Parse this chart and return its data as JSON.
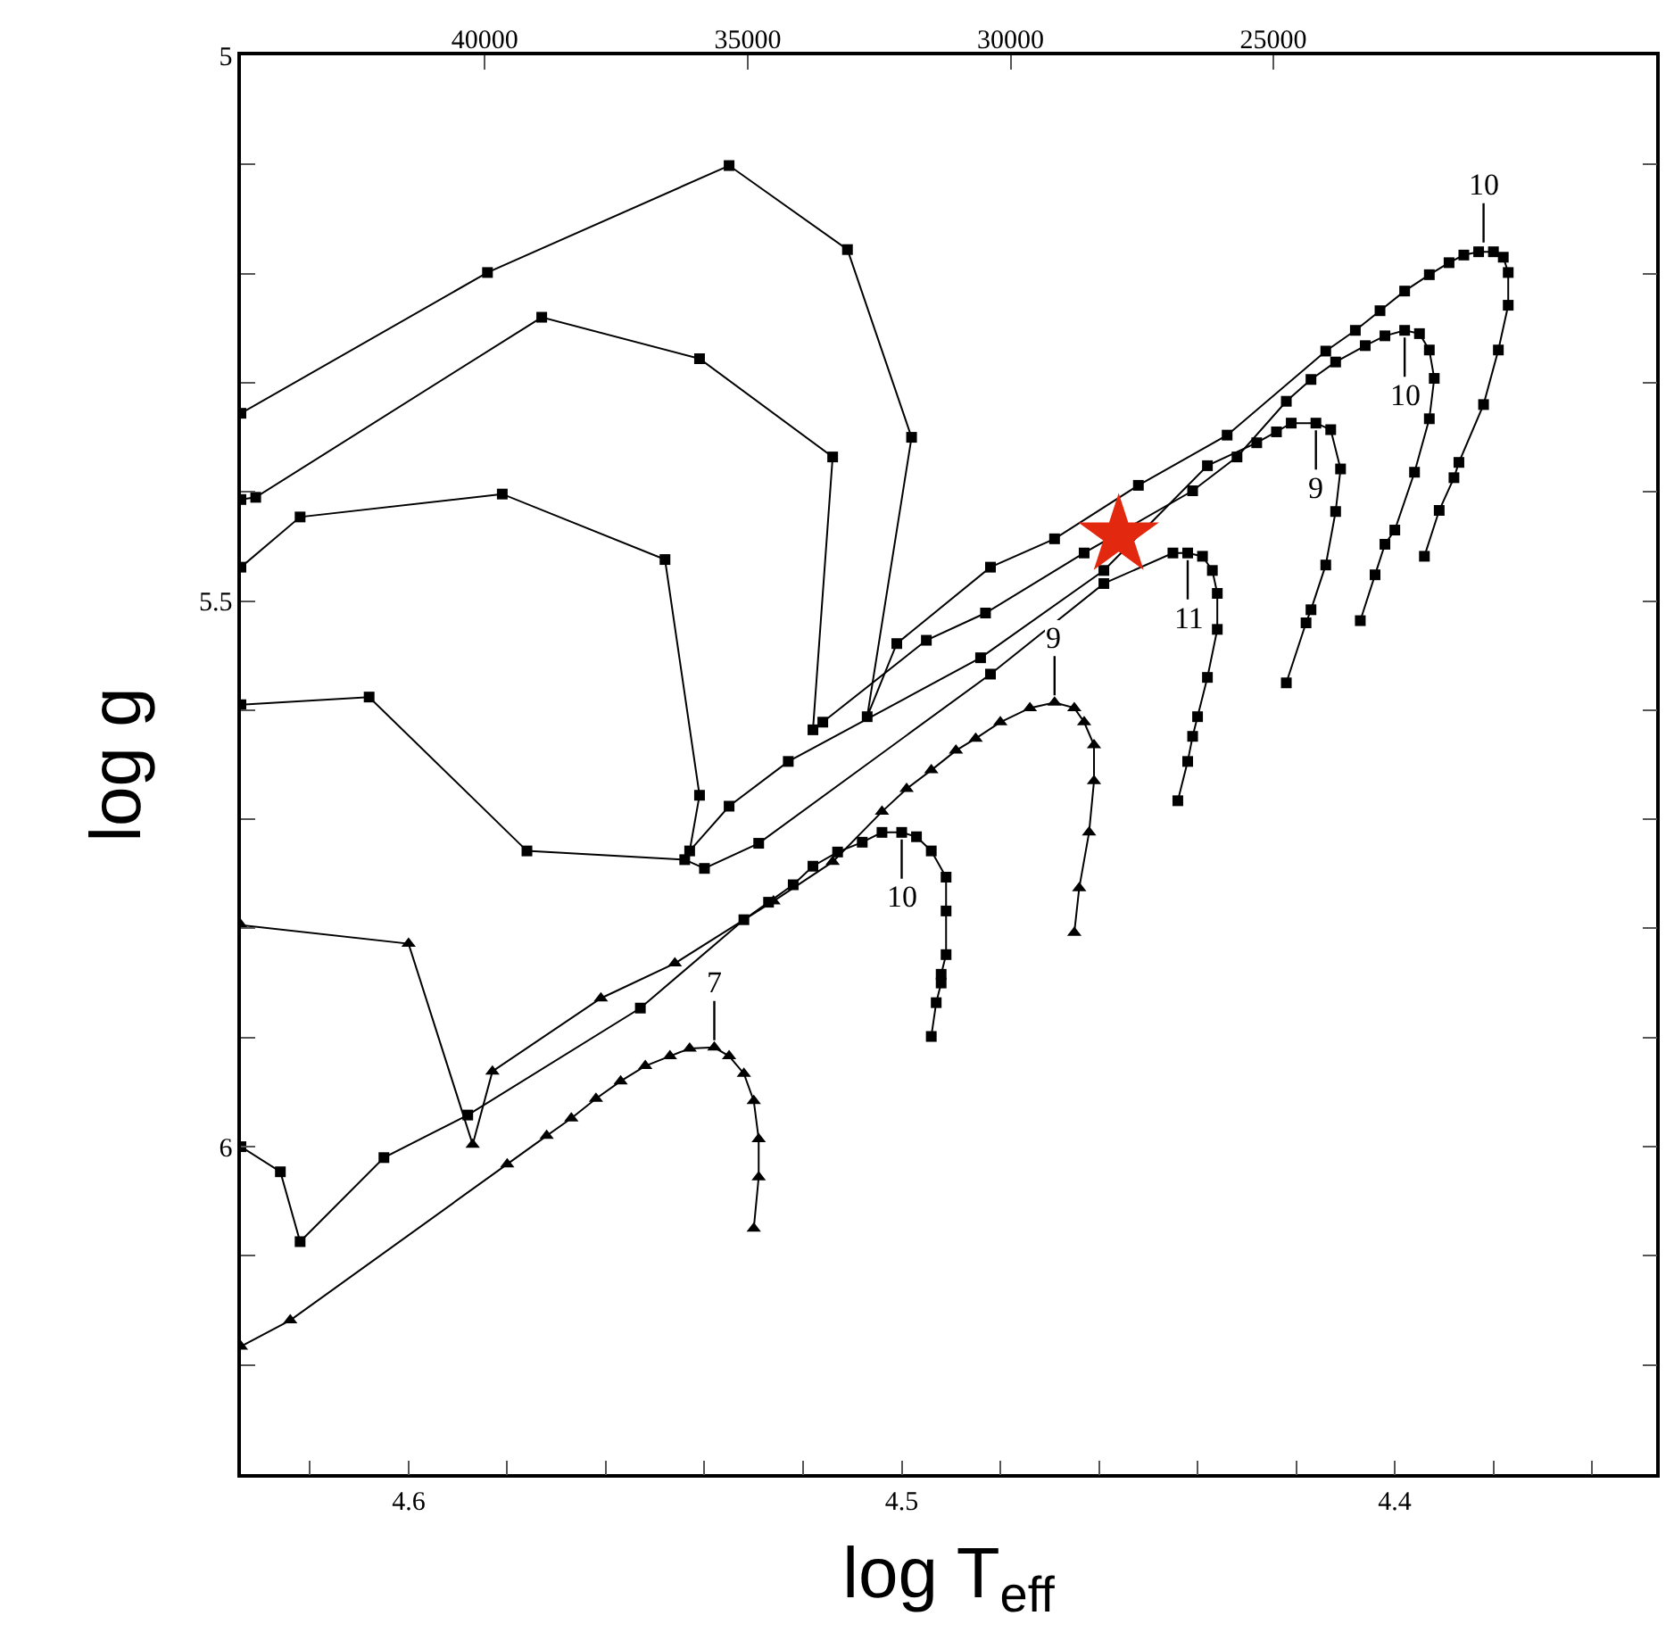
{
  "chart_data": {
    "type": "line",
    "xlabel": "log T$_{eff}$",
    "ylabel": "log g",
    "xlim": [
      4.634,
      4.347
    ],
    "ylim": [
      6.3,
      5.0
    ],
    "xticks": [
      {
        "value": 4.62,
        "label": null
      },
      4.6,
      {
        "value": 4.58,
        "label": null
      },
      {
        "value": 4.56,
        "label": null
      },
      {
        "value": 4.54,
        "label": null
      },
      {
        "value": 4.52,
        "label": null
      },
      4.5,
      {
        "value": 4.48,
        "label": null
      },
      {
        "value": 4.46,
        "label": null
      },
      {
        "value": 4.44,
        "label": null
      },
      {
        "value": 4.42,
        "label": null
      },
      4.4,
      {
        "value": 4.38,
        "label": null
      },
      {
        "value": 4.36,
        "label": null
      }
    ],
    "yticks": [
      5,
      {
        "value": 5.1,
        "label": null
      },
      {
        "value": 5.2,
        "label": null
      },
      {
        "value": 5.3,
        "label": null
      },
      {
        "value": 5.4,
        "label": null
      },
      5.5,
      {
        "value": 5.6,
        "label": null
      },
      {
        "value": 5.7,
        "label": null
      },
      {
        "value": 5.8,
        "label": null
      },
      {
        "value": 5.9,
        "label": null
      },
      6,
      {
        "value": 6.1,
        "label": null
      },
      {
        "value": 6.2,
        "label": null
      }
    ],
    "x2lim": [
      44640,
      17720
    ],
    "x2ticks": [
      40000,
      35000,
      30000,
      25000
    ],
    "line_style": "solid",
    "series": [
      {
        "color": "#000000",
        "marker": "square",
        "x": [
          4.634,
          4.584,
          4.535,
          4.511,
          4.498,
          4.507,
          4.501,
          4.482,
          4.469,
          4.452,
          4.434,
          4.414,
          4.408,
          4.403,
          4.398,
          4.393,
          4.389,
          4.386,
          4.383,
          4.38,
          4.378,
          4.377,
          4.377,
          4.379,
          4.382,
          4.387,
          4.388,
          4.391,
          4.394
        ],
        "values": [
          5.328,
          5.199,
          5.101,
          5.178,
          5.35,
          5.606,
          5.539,
          5.469,
          5.443,
          5.394,
          5.348,
          5.271,
          5.252,
          5.234,
          5.216,
          5.201,
          5.19,
          5.183,
          5.18,
          5.18,
          5.185,
          5.199,
          5.229,
          5.27,
          5.32,
          5.373,
          5.387,
          5.417,
          5.459
        ]
      },
      {
        "color": "#000000",
        "marker": "square",
        "x": [
          4.634,
          4.631,
          4.573,
          4.541,
          4.514,
          4.518,
          4.516,
          4.495,
          4.483,
          4.463,
          4.441,
          4.432,
          4.422,
          4.417,
          4.412,
          4.406,
          4.402,
          4.398,
          4.395,
          4.393,
          4.392,
          4.393,
          4.396,
          4.4,
          4.402,
          4.404,
          4.407
        ],
        "values": [
          5.407,
          5.405,
          5.24,
          5.278,
          5.368,
          5.618,
          5.611,
          5.536,
          5.511,
          5.456,
          5.399,
          5.368,
          5.317,
          5.297,
          5.281,
          5.266,
          5.257,
          5.252,
          5.255,
          5.27,
          5.296,
          5.333,
          5.382,
          5.435,
          5.448,
          5.476,
          5.518
        ]
      },
      {
        "color": "#000000",
        "marker": "square",
        "x": [
          4.634,
          4.622,
          4.581,
          4.548,
          4.541,
          4.543,
          4.535,
          4.523,
          4.484,
          4.459,
          4.438,
          4.428,
          4.424,
          4.421,
          4.416,
          4.413,
          4.411,
          4.412,
          4.414,
          4.417,
          4.418,
          4.422
        ],
        "values": [
          5.469,
          5.423,
          5.402,
          5.462,
          5.678,
          5.729,
          5.688,
          5.647,
          5.552,
          5.472,
          5.376,
          5.355,
          5.345,
          5.337,
          5.337,
          5.343,
          5.379,
          5.418,
          5.467,
          5.508,
          5.52,
          5.575
        ]
      },
      {
        "color": "#000000",
        "marker": "square",
        "x": [
          4.634,
          4.608,
          4.576,
          4.544,
          4.54,
          4.529,
          4.482,
          4.459,
          4.445,
          4.442,
          4.439,
          4.437,
          4.436,
          4.436,
          4.438,
          4.44,
          4.441,
          4.442,
          4.444
        ],
        "values": [
          5.595,
          5.588,
          5.729,
          5.737,
          5.745,
          5.722,
          5.567,
          5.484,
          5.456,
          5.456,
          5.459,
          5.472,
          5.493,
          5.526,
          5.57,
          5.606,
          5.624,
          5.647,
          5.683
        ]
      },
      {
        "color": "#000000",
        "marker": "triangle",
        "x": [
          4.634,
          4.6,
          4.587,
          4.583,
          4.561,
          4.546,
          4.526,
          4.514,
          4.504,
          4.499,
          4.494,
          4.489,
          4.485,
          4.48,
          4.474,
          4.469,
          4.465,
          4.463,
          4.461,
          4.461,
          4.462,
          4.464,
          4.465
        ],
        "values": [
          5.797,
          5.814,
          5.998,
          5.931,
          5.864,
          5.832,
          5.775,
          5.739,
          5.693,
          5.672,
          5.655,
          5.637,
          5.626,
          5.611,
          5.598,
          5.593,
          5.598,
          5.611,
          5.632,
          5.665,
          5.712,
          5.763,
          5.804
        ]
      },
      {
        "color": "#000000",
        "marker": "square",
        "x": [
          4.634,
          4.626,
          4.622,
          4.605,
          4.588,
          4.553,
          4.532,
          4.527,
          4.522,
          4.518,
          4.513,
          4.508,
          4.504,
          4.5,
          4.497,
          4.494,
          4.491,
          4.491,
          4.491,
          4.492,
          4.492,
          4.493,
          4.494
        ],
        "values": [
          6.0,
          6.023,
          6.087,
          6.01,
          5.971,
          5.873,
          5.792,
          5.776,
          5.76,
          5.743,
          5.73,
          5.721,
          5.712,
          5.712,
          5.716,
          5.729,
          5.753,
          5.784,
          5.824,
          5.842,
          5.85,
          5.868,
          5.899
        ]
      },
      {
        "color": "#000000",
        "marker": "triangle",
        "x": [
          4.634,
          4.624,
          4.58,
          4.572,
          4.567,
          4.562,
          4.557,
          4.552,
          4.547,
          4.543,
          4.538,
          4.535,
          4.532,
          4.53,
          4.529,
          4.529,
          4.53
        ],
        "values": [
          6.183,
          6.159,
          6.016,
          5.99,
          5.974,
          5.956,
          5.94,
          5.926,
          5.917,
          5.91,
          5.909,
          5.917,
          5.933,
          5.958,
          5.993,
          6.028,
          6.075
        ]
      },
      {
        "type": "scatter",
        "color": "#e2280e",
        "marker": "star",
        "x": [
          4.456
        ],
        "values": [
          5.44
        ]
      }
    ],
    "annotations": [
      {
        "text": "10",
        "x": 4.382,
        "y": 5.178
      },
      {
        "text": "10",
        "x": 4.398,
        "y": 5.252
      },
      {
        "text": "9",
        "x": 4.416,
        "y": 5.337
      },
      {
        "text": "11",
        "x": 4.442,
        "y": 5.456
      },
      {
        "text": "9",
        "x": 4.469,
        "y": 5.593
      },
      {
        "text": "10",
        "x": 4.5,
        "y": 5.712
      },
      {
        "text": "7",
        "x": 4.538,
        "y": 5.909
      }
    ]
  }
}
